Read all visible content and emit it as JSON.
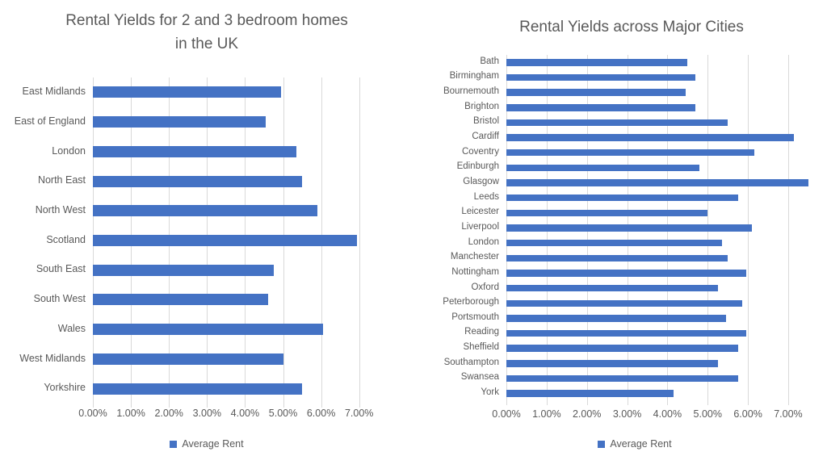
{
  "colors": {
    "bar": "#4472C4",
    "gridline": "#D9D9D9",
    "text": "#595959"
  },
  "chart_data": [
    {
      "type": "bar",
      "orientation": "horizontal",
      "title": "Rental Yields for 2 and 3 bedroom homes in the UK",
      "title_lines": [
        "Rental Yields for 2 and 3 bedroom homes",
        "in the UK"
      ],
      "legend": [
        "Average Rent"
      ],
      "legend_position": "bottom",
      "categories": [
        "East Midlands",
        "East of England",
        "London",
        "North East",
        "North West",
        "Scotland",
        "South East",
        "South West",
        "Wales",
        "West Midlands",
        "Yorkshire"
      ],
      "series": [
        {
          "name": "Average Rent",
          "values": [
            4.95,
            4.55,
            5.35,
            5.5,
            5.9,
            6.95,
            4.75,
            4.6,
            6.05,
            5.0,
            5.5
          ]
        }
      ],
      "value_unit": "%",
      "x_ticks": [
        "0.00%",
        "1.00%",
        "2.00%",
        "3.00%",
        "4.00%",
        "5.00%",
        "6.00%",
        "7.00%"
      ],
      "xlim": [
        0,
        7.4
      ],
      "grid": true,
      "bar_color": "#4472C4"
    },
    {
      "type": "bar",
      "orientation": "horizontal",
      "title": "Rental Yields across Major Cities",
      "title_lines": [
        "Rental Yields across Major Cities"
      ],
      "legend": [
        "Average Rent"
      ],
      "legend_position": "bottom",
      "categories": [
        "Bath",
        "Birmingham",
        "Bournemouth",
        "Brighton",
        "Bristol",
        "Cardiff",
        "Coventry",
        "Edinburgh",
        "Glasgow",
        "Leeds",
        "Leicester",
        "Liverpool",
        "London",
        "Manchester",
        "Nottingham",
        "Oxford",
        "Peterborough",
        "Portsmouth",
        "Reading",
        "Sheffield",
        "Southampton",
        "Swansea",
        "York"
      ],
      "series": [
        {
          "name": "Average Rent",
          "values": [
            4.5,
            4.7,
            4.45,
            4.7,
            5.5,
            7.15,
            6.15,
            4.8,
            7.5,
            5.75,
            5.0,
            6.1,
            5.35,
            5.5,
            5.95,
            5.25,
            5.85,
            5.45,
            5.95,
            5.75,
            5.25,
            5.75,
            4.15
          ]
        }
      ],
      "value_unit": "%",
      "x_ticks": [
        "0.00%",
        "1.00%",
        "2.00%",
        "3.00%",
        "4.00%",
        "5.00%",
        "6.00%",
        "7.00%"
      ],
      "xlim": [
        0,
        7.6
      ],
      "grid": true,
      "bar_color": "#4472C4"
    }
  ]
}
